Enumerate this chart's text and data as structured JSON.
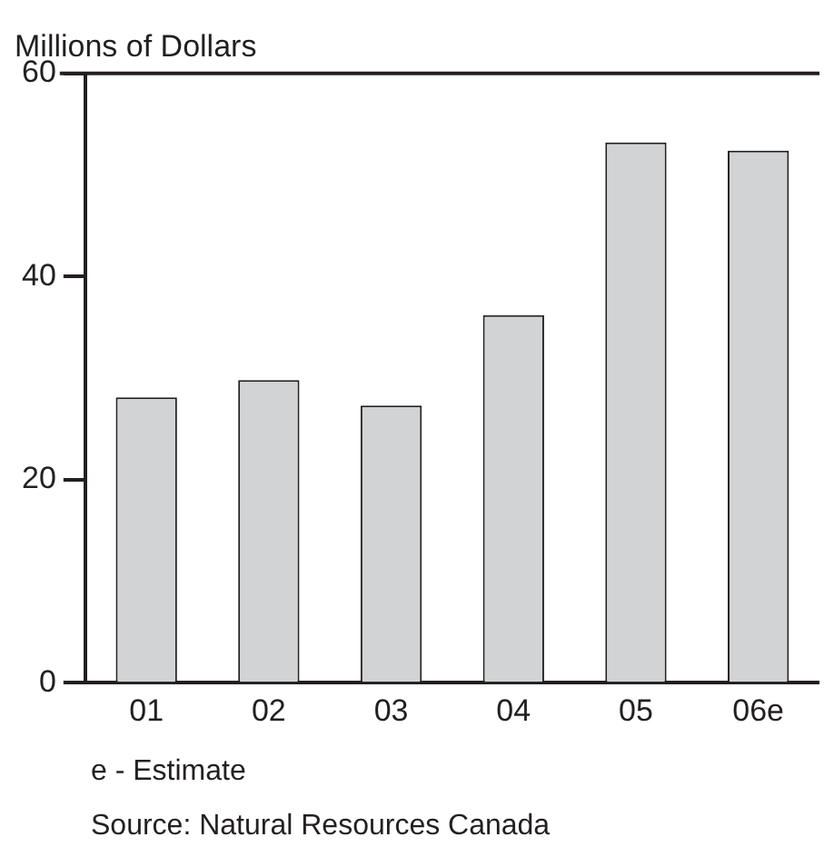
{
  "chart_data": {
    "type": "bar",
    "ylabel": "Millions of Dollars",
    "categories": [
      "01",
      "02",
      "03",
      "04",
      "05",
      "06e"
    ],
    "values": [
      28.1,
      29.8,
      27.3,
      36.2,
      53.2,
      52.4
    ],
    "color": "#d1d3d4",
    "ylim": [
      0,
      60
    ],
    "yticks": [
      0,
      20,
      40,
      60
    ],
    "grid": false,
    "legend": false,
    "annotations": [
      "e - Estimate",
      "Source: Natural Resources Canada"
    ]
  }
}
